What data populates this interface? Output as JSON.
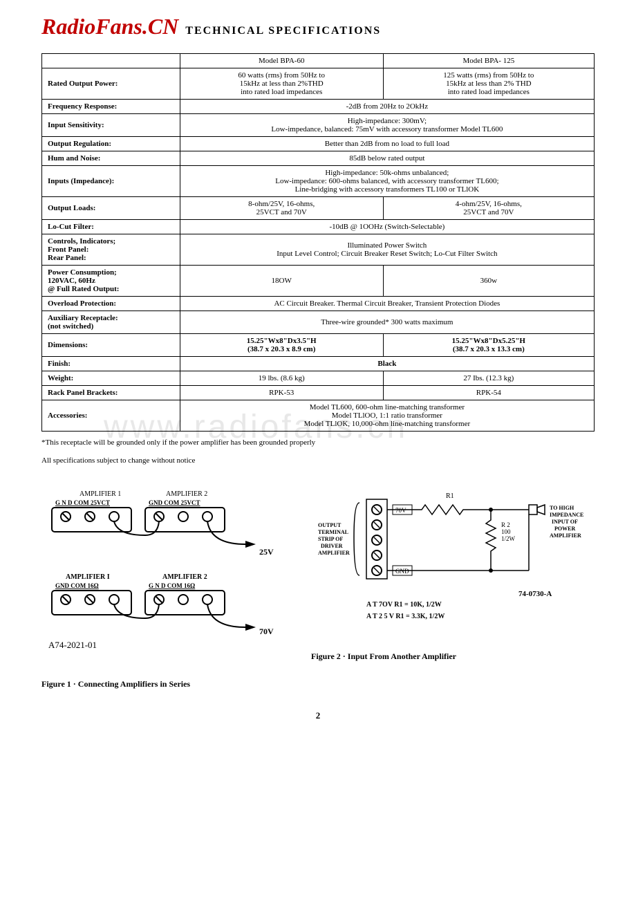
{
  "header": {
    "logo": "RadioFans.CN",
    "subtitle": "TECHNICAL  SPECIFICATIONS"
  },
  "table": {
    "col1": "Model BPA-60",
    "col2": "Model BPA- 125",
    "rows": [
      {
        "label": "Rated Output Power:",
        "c1": "60 watts (rms) from 50Hz to\n15kHz at less than 2%THD\ninto rated load impedances",
        "c2": "125 watts (rms) from 50Hz to\n15kHz at less than 2% THD\ninto rated load impedances"
      },
      {
        "label": "Frequency  Response:",
        "span": "-2dB from 20Hz to 2OkHz"
      },
      {
        "label": "Input Sensitivity:",
        "span": "High-impedance:   300mV;\nLow-impedance, balanced: 75mV with accessory transformer Model TL600"
      },
      {
        "label": "Output Regulation:",
        "span": "Better than 2dB from no load to full load"
      },
      {
        "label": "Hum and Noise:",
        "span": "85dB below rated output"
      },
      {
        "label": "Inputs  (Impedance):",
        "span": "High-impedance: 50k-ohms unbalanced;\nLow-impedance: 600-ohms balanced, with accessory transformer TL600;\nLine-bridging with accessory transformers TL100 or TLlOK"
      },
      {
        "label": "Output Loads:",
        "c1": "8-ohm/25V, 16-ohms,\n25VCT and 70V",
        "c2": "4-ohm/25V, 16-ohms,\n25VCT and 70V"
      },
      {
        "label": "Lo-Cut Filter:",
        "span": "-10dB @ 1OOHz  (Switch-Selectable)"
      },
      {
        "label": "Controls,  Indicators;\nFront Panel:\nRear Panel:",
        "span": "Illuminated Power Switch\nInput Level Control; Circuit Breaker Reset Switch; Lo-Cut Filter Switch"
      },
      {
        "label": "Power   Consumption;\n120VAC, 60Hz\n@ Full Rated Output:",
        "c1": "18OW",
        "c2": "360w"
      },
      {
        "label": "Overload   Protection:",
        "span": "AC Circuit Breaker. Thermal Circuit Breaker, Transient Protection Diodes"
      },
      {
        "label": "Auxiliary  Receptacle:\n(not switched)",
        "span": "Three-wire grounded* 300 watts maximum"
      },
      {
        "label": "Dimensions:",
        "c1": "15.25\"Wx8\"Dx3.5\"H\n(38.7 x 20.3 x 8.9 cm)",
        "c1bold": true,
        "c2": "15.25\"Wx8\"Dx5.25\"H\n(38.7 x 20.3 x 13.3 cm)",
        "c2bold": true
      },
      {
        "label": "Finish:",
        "span": "Black",
        "spanbold": true
      },
      {
        "label": "Weight:",
        "c1": "19 lbs. (8.6 kg)",
        "c2": "27 Ibs. (12.3 kg)"
      },
      {
        "label": "Rack Panel Brackets:",
        "c1": "RPK-53",
        "c2": "RPK-54"
      },
      {
        "label": "Accessories:",
        "span": "Model TL600, 600-ohm line-matching transformer\nModel TLlOO, 1:1 ratio transformer\nModel TLlOK, 10,000-ohm line-matching transformer"
      }
    ]
  },
  "footnote1": "*This receptacle will be grounded only if the power amplifier has been grounded properly",
  "footnote2": "All specifications subject to change without notice",
  "watermark": "www.radiofans.cn",
  "fig1": {
    "amp1_top": "AMPLIFIER 1",
    "amp2_top": "AMPLIFIER 2",
    "hdr_top": "G N D  COM 25VCT",
    "hdr_top2": "GND COM 25VCT",
    "v25": "25V",
    "amp1_bot": "AMPLIFIER I",
    "amp2_bot": "AMPLIFIER 2",
    "hdr_bot": "GND  COM  16Ω",
    "hdr_bot2": "G N D  COM  16Ω",
    "v70": "70V",
    "partno": "A74-2021-01",
    "caption": "Figure 1 · Connecting Amplifiers in Series"
  },
  "fig2": {
    "left_label": "OUTPUT\nTERMINAL\nSTRIP OF\nDRIVER\nAMPLIFIER",
    "r1": "R1",
    "v70": "70V",
    "r2": "R 2\n100\n1/2W",
    "gnd": "GND",
    "right_label": "TO  HIGH\nIMPEDANCE\nINPUT OF\nPOWER\nAMPLIFIER",
    "note1": "A T  7OV  R1  = 10K, 1/2W",
    "note2": "A T  2 5 V  R1  = 3.3K, 1/2W",
    "partno": "74-0730-A",
    "caption": "Figure 2 · Input From Another Amplifier"
  },
  "pagenum": "2"
}
